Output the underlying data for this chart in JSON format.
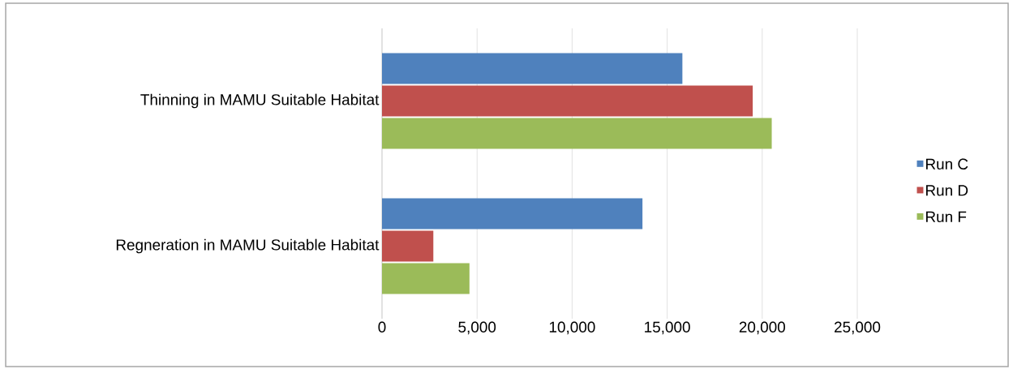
{
  "chart_data": {
    "type": "bar",
    "orientation": "horizontal",
    "categories": [
      "Thinning in MAMU Suitable Habitat",
      "Regneration in MAMU Suitable Habitat"
    ],
    "series": [
      {
        "name": "Run C",
        "color": "#4f81bd",
        "values": [
          15800,
          13700
        ]
      },
      {
        "name": "Run D",
        "color": "#c0504d",
        "values": [
          19500,
          2700
        ]
      },
      {
        "name": "Run F",
        "color": "#9bbb59",
        "values": [
          20500,
          4600
        ]
      }
    ],
    "xlim": [
      0,
      25000
    ],
    "xticks": [
      0,
      {
        "value": 5000,
        "label": "5,000"
      },
      {
        "value": 10000,
        "label": "10,000"
      },
      {
        "value": 15000,
        "label": "15,000"
      },
      {
        "value": 20000,
        "label": "20,000"
      },
      {
        "value": 25000,
        "label": "25,000"
      }
    ],
    "grid": "x",
    "legend": "right"
  }
}
